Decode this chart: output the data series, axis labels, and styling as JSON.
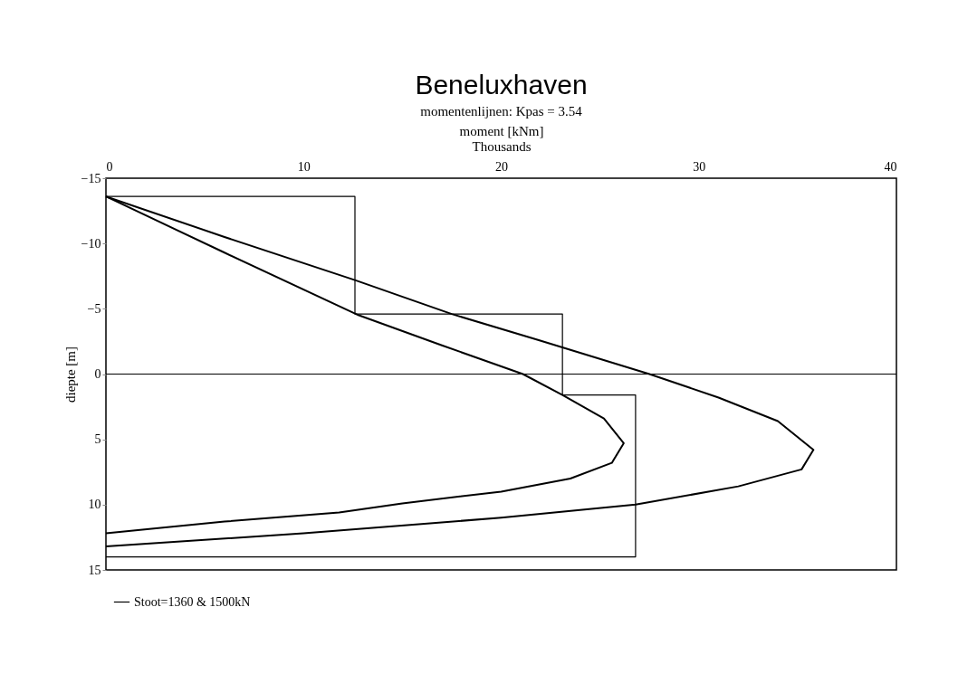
{
  "chart_data": {
    "type": "line",
    "title": "Beneluxhaven",
    "subtitle": "momentenlijnen: Kpas = 3.54",
    "xlabel": "moment [kNm]",
    "ylabel": "diepte [m]",
    "annotations": [
      "Thousands"
    ],
    "xlim": [
      0,
      40
    ],
    "xticks": [
      0,
      10,
      20,
      30,
      40
    ],
    "ylim": [
      15,
      -15
    ],
    "yticks": [
      -15,
      -10,
      -5,
      0,
      5,
      10,
      15
    ],
    "grid": false,
    "legend": "bottom",
    "line_style": "solid",
    "ref_lines": [
      {
        "axis": "y",
        "value": 0,
        "color": "#000000"
      }
    ],
    "series": [
      {
        "name": "Stoot=1360 & 1500kN",
        "color": "#000000",
        "x": [
          0,
          6,
          12.8,
          17,
          21.1,
          23.1,
          25.2,
          26.2,
          25.6,
          23.5,
          20,
          15,
          11.8,
          6,
          0
        ],
        "values": [
          -13.6,
          -9.3,
          -4.5,
          -2.2,
          0,
          1.6,
          3.4,
          5.3,
          6.8,
          8,
          9,
          9.9,
          10.6,
          11.3,
          12.2
        ]
      },
      {
        "color": "#000000",
        "x": [
          0,
          6,
          12.6,
          17.5,
          21.9,
          27.5,
          31,
          34,
          35.8,
          35.2,
          32,
          26.8,
          20,
          10,
          0
        ],
        "values": [
          -13.6,
          -10.5,
          -7.2,
          -4.6,
          -2.6,
          0,
          1.8,
          3.6,
          5.8,
          7.3,
          8.6,
          10,
          11,
          12.2,
          13.2
        ]
      },
      {
        "color": "#000000",
        "x": [
          0,
          12.6,
          12.6,
          23.1,
          23.1,
          26.8,
          26.8,
          0
        ],
        "values": [
          -13.6,
          -13.6,
          -4.6,
          -4.6,
          1.6,
          1.6,
          14,
          14
        ]
      }
    ]
  }
}
